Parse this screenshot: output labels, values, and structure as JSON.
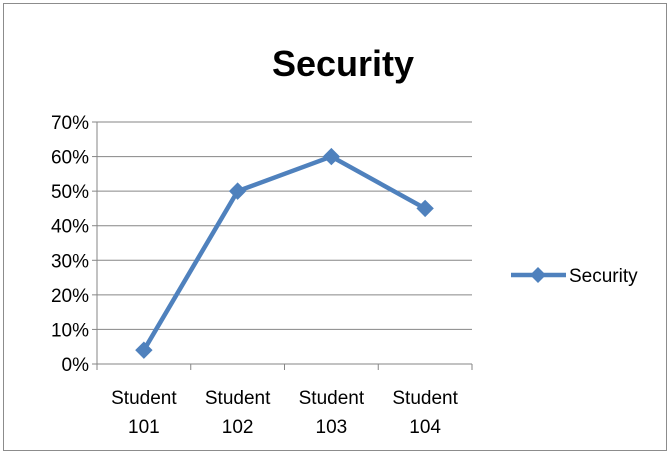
{
  "chart_data": {
    "type": "line",
    "title": "Security",
    "categories": [
      [
        "Student",
        "101"
      ],
      [
        "Student",
        "102"
      ],
      [
        "Student",
        "103"
      ],
      [
        "Student",
        "104"
      ]
    ],
    "category_names": [
      "Student 101",
      "Student 102",
      "Student 103",
      "Student 104"
    ],
    "series": [
      {
        "name": "Security",
        "values": [
          0.04,
          0.5,
          0.6,
          0.45
        ],
        "color": "#4f81bd",
        "marker": "diamond"
      }
    ],
    "ylim": [
      0,
      0.7
    ],
    "y_ticks": [
      0,
      0.1,
      0.2,
      0.3,
      0.4,
      0.5,
      0.6,
      0.7
    ],
    "y_tick_labels": [
      "0%",
      "10%",
      "20%",
      "30%",
      "40%",
      "50%",
      "60%",
      "70%"
    ],
    "y_format": "percent",
    "grid": true,
    "legend_position": "right",
    "xlabel": "",
    "ylabel": ""
  },
  "colors": {
    "gridline": "#868686",
    "axis": "#868686",
    "series": "#4f81bd",
    "frame": "#8c8c8c"
  }
}
